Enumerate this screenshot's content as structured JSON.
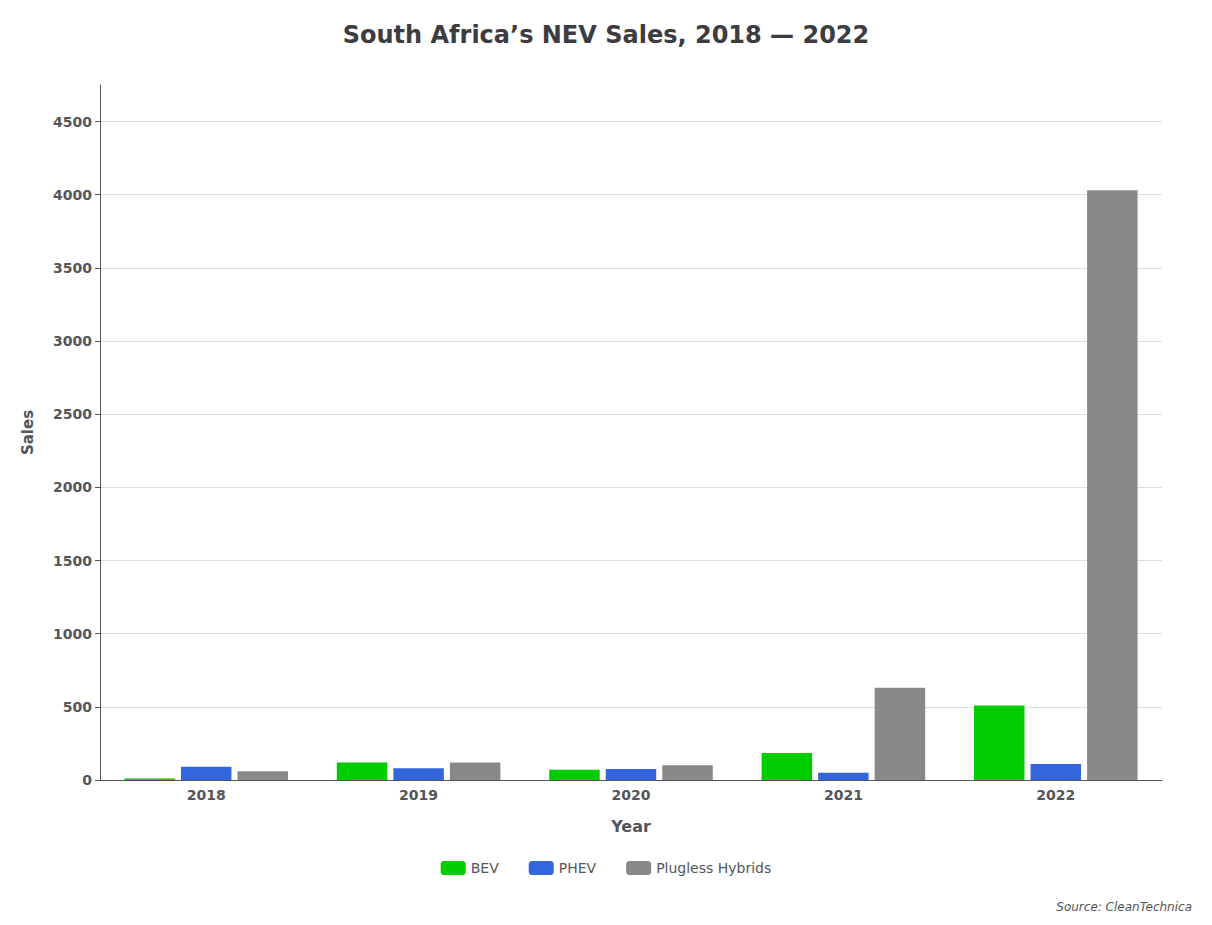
{
  "chart_data": {
    "type": "bar",
    "title": "South Africa’s NEV Sales, 2018 — 2022",
    "xlabel": "Year",
    "ylabel": "Sales",
    "annotations": [
      "Source: CleanTechnica"
    ],
    "categories": [
      "2018",
      "2019",
      "2020",
      "2021",
      "2022"
    ],
    "series": [
      {
        "name": "BEV",
        "color": "#00cc00",
        "values": [
          10,
          120,
          70,
          185,
          510
        ]
      },
      {
        "name": "PHEV",
        "color": "#3366dd",
        "values": [
          90,
          80,
          75,
          50,
          110
        ]
      },
      {
        "name": "Plugless Hybrids",
        "color": "#888888",
        "values": [
          60,
          120,
          100,
          630,
          4030
        ]
      }
    ],
    "ylim": [
      0,
      4750
    ],
    "yticks": [
      0,
      500,
      1000,
      1500,
      2000,
      2500,
      3000,
      3500,
      4000,
      4500
    ],
    "grid": true,
    "legend": "bottom"
  }
}
